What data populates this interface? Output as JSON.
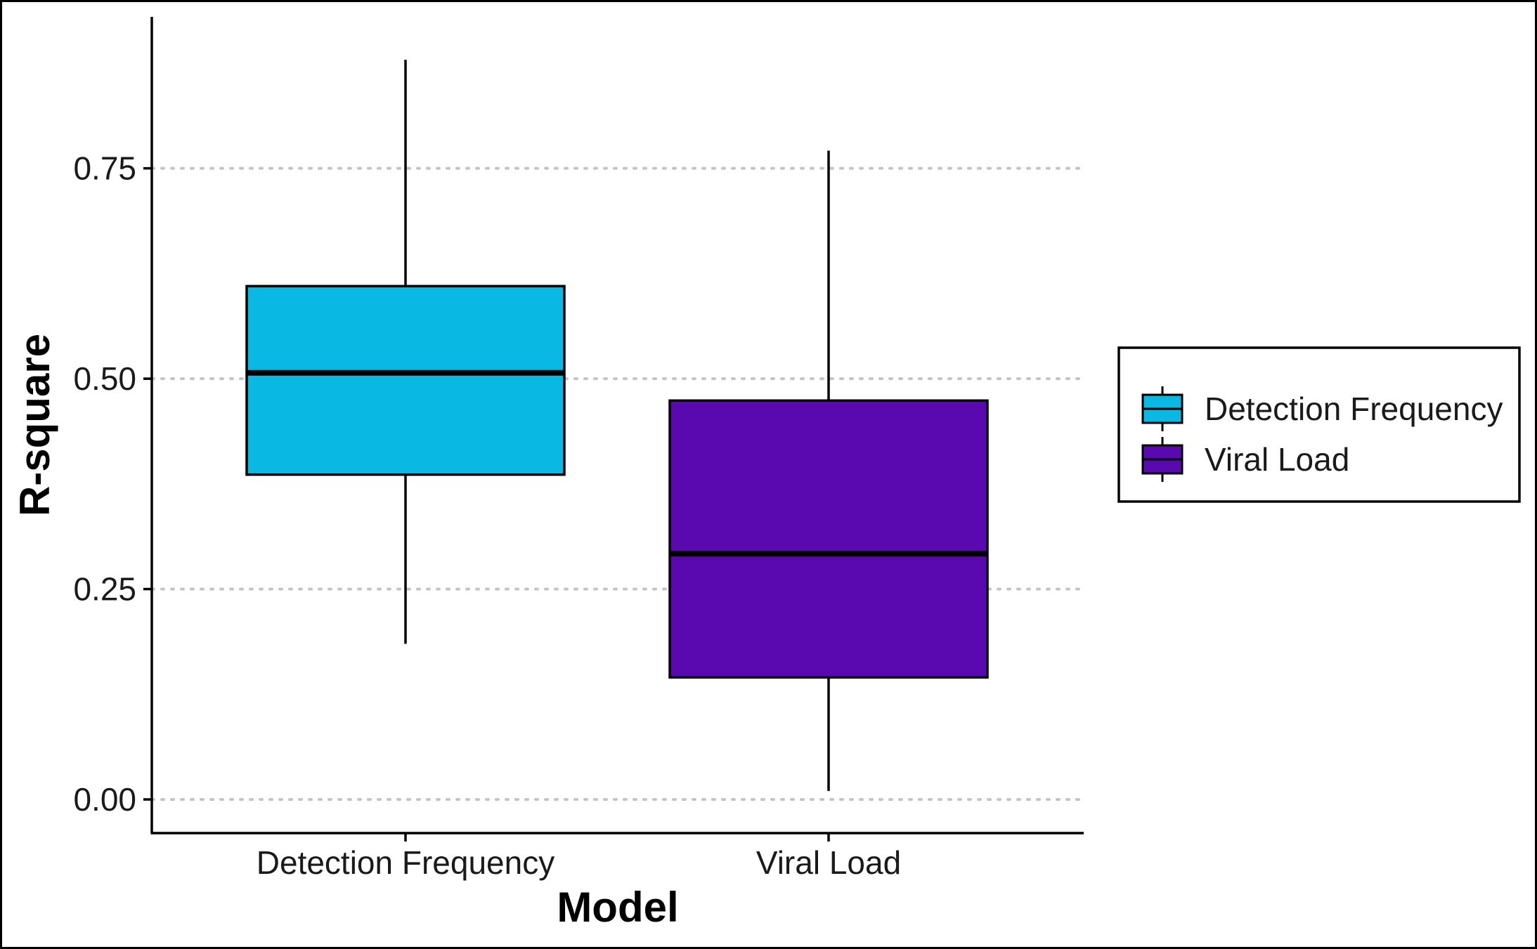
{
  "chart_data": {
    "type": "boxplot",
    "title": "",
    "xlabel": "Model",
    "ylabel": "R-square",
    "ylim": [
      -0.04,
      0.93
    ],
    "yticks": [
      0.0,
      0.25,
      0.5,
      0.75
    ],
    "ytick_labels": [
      "0.00",
      "0.25",
      "0.50",
      "0.75"
    ],
    "grid": "horizontal dotted gray at y ticks",
    "legend_position": "right",
    "categories": [
      "Detection Frequency",
      "Viral Load"
    ],
    "series": [
      {
        "name": "Detection Frequency",
        "color": "#0ab8e4",
        "whisker_low": 0.185,
        "q1": 0.386,
        "median": 0.507,
        "q3": 0.61,
        "whisker_high": 0.879
      },
      {
        "name": "Viral Load",
        "color": "#5a09b0",
        "whisker_low": 0.01,
        "q1": 0.145,
        "median": 0.292,
        "q3": 0.474,
        "whisker_high": 0.771
      }
    ]
  }
}
